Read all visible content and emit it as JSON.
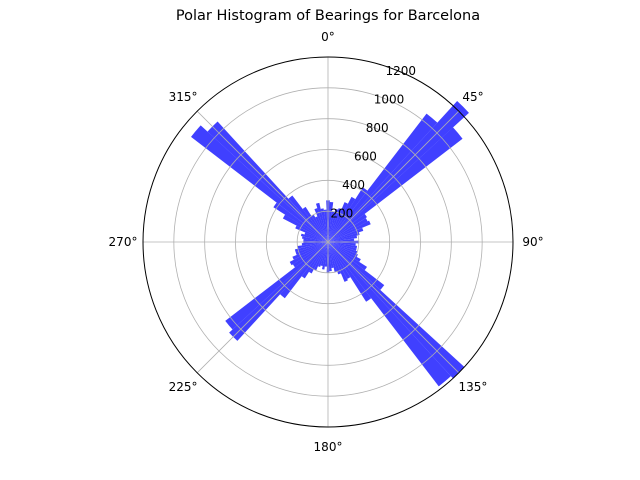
{
  "chart_data": {
    "type": "polar-histogram",
    "title": "Polar Histogram of Bearings for Barcelona",
    "theta_zero": "north",
    "theta_direction": "clockwise",
    "bin_width_deg": 5,
    "r_max": 1200,
    "r_ticks": [
      200,
      400,
      600,
      800,
      1000,
      1200
    ],
    "r_tick_labels": [
      "200",
      "400",
      "600",
      "800",
      "1000",
      "1200"
    ],
    "theta_ticks": [
      0,
      45,
      90,
      135,
      180,
      225,
      270,
      315
    ],
    "theta_tick_labels": [
      "0°",
      "45°",
      "90°",
      "135°",
      "180°",
      "225°",
      "270°",
      "315°"
    ],
    "grid": true,
    "bar_color": "#0000ff",
    "bar_opacity": 0.75,
    "bins_deg": [
      0,
      5,
      10,
      15,
      20,
      25,
      30,
      35,
      40,
      45,
      50,
      55,
      60,
      65,
      70,
      75,
      80,
      85,
      90,
      95,
      100,
      105,
      110,
      115,
      120,
      125,
      130,
      135,
      140,
      145,
      150,
      155,
      160,
      165,
      170,
      175,
      180,
      185,
      190,
      195,
      200,
      205,
      210,
      215,
      220,
      225,
      230,
      235,
      240,
      245,
      250,
      255,
      260,
      265,
      270,
      275,
      280,
      285,
      290,
      295,
      300,
      305,
      310,
      315,
      320,
      325,
      330,
      335,
      340,
      345,
      350,
      355
    ],
    "values": [
      270,
      260,
      200,
      220,
      230,
      280,
      330,
      420,
      1050,
      1240,
      1100,
      300,
      290,
      300,
      240,
      210,
      190,
      170,
      200,
      180,
      190,
      190,
      200,
      210,
      240,
      300,
      460,
      1200,
      1180,
      460,
      270,
      280,
      220,
      200,
      170,
      190,
      200,
      160,
      180,
      160,
      170,
      200,
      230,
      280,
      460,
      870,
      840,
      270,
      280,
      250,
      220,
      220,
      200,
      170,
      160,
      160,
      170,
      180,
      160,
      230,
      330,
      420,
      1120,
      1060,
      380,
      270,
      200,
      180,
      230,
      260,
      220,
      210
    ]
  }
}
